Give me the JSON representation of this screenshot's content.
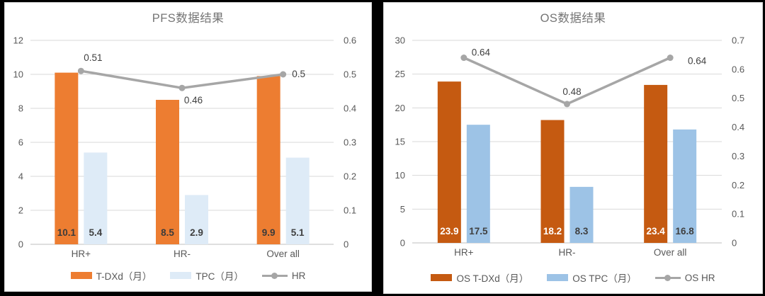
{
  "page": {
    "background": "#000000",
    "card_background": "#ffffff",
    "grid_color": "#d9d9d9",
    "axis_text_color": "#595959",
    "title_color": "#757575"
  },
  "chart_data": [
    {
      "type": "bar+line",
      "title": "PFS数据结果",
      "categories": [
        "HR+",
        "HR-",
        "Over all"
      ],
      "bar_series": [
        {
          "name": "T-DXd（月）",
          "values": [
            10.1,
            8.5,
            9.9
          ],
          "labels": [
            "10.1",
            "8.5",
            "9.9"
          ],
          "color": "#ED7D31",
          "label_color": "#3B3B3B"
        },
        {
          "name": "TPC（月）",
          "values": [
            5.4,
            2.9,
            5.1
          ],
          "labels": [
            "5.4",
            "2.9",
            "5.1"
          ],
          "color": "#DEEBF7",
          "label_color": "#404040"
        }
      ],
      "line_series": {
        "name": "HR",
        "values": [
          0.51,
          0.46,
          0.5
        ],
        "labels": [
          "0.51",
          "0.46",
          "0.5"
        ],
        "color": "#A6A6A6"
      },
      "axes": {
        "left": {
          "min": 0,
          "max": 12,
          "ticks": [
            "0",
            "2",
            "4",
            "6",
            "8",
            "10",
            "12"
          ]
        },
        "right": {
          "min": 0,
          "max": 0.6,
          "ticks": [
            "0",
            "0.1",
            "0.2",
            "0.3",
            "0.4",
            "0.5",
            "0.6"
          ]
        }
      },
      "grid": true,
      "legend_position": "bottom"
    },
    {
      "type": "bar+line",
      "title": "OS数据结果",
      "categories": [
        "HR+",
        "HR-",
        "Over all"
      ],
      "bar_series": [
        {
          "name": "OS T-DXd（月）",
          "values": [
            23.9,
            18.2,
            23.4
          ],
          "labels": [
            "23.9",
            "18.2",
            "23.4"
          ],
          "color": "#C55A11",
          "label_color": "#FFFFFF"
        },
        {
          "name": "OS TPC（月）",
          "values": [
            17.5,
            8.3,
            16.8
          ],
          "labels": [
            "17.5",
            "8.3",
            "16.8"
          ],
          "color": "#9DC3E6",
          "label_color": "#404040"
        }
      ],
      "line_series": {
        "name": "OS HR",
        "values": [
          0.64,
          0.48,
          0.64
        ],
        "labels": [
          "0.64",
          "0.48",
          "0.64"
        ],
        "color": "#A6A6A6"
      },
      "axes": {
        "left": {
          "min": 0,
          "max": 30,
          "ticks": [
            "0",
            "5",
            "10",
            "15",
            "20",
            "25",
            "30"
          ]
        },
        "right": {
          "min": 0,
          "max": 0.7,
          "ticks": [
            "0",
            "0.1",
            "0.2",
            "0.3",
            "0.4",
            "0.5",
            "0.6",
            "0.7"
          ]
        }
      },
      "grid": true,
      "legend_position": "bottom"
    }
  ]
}
